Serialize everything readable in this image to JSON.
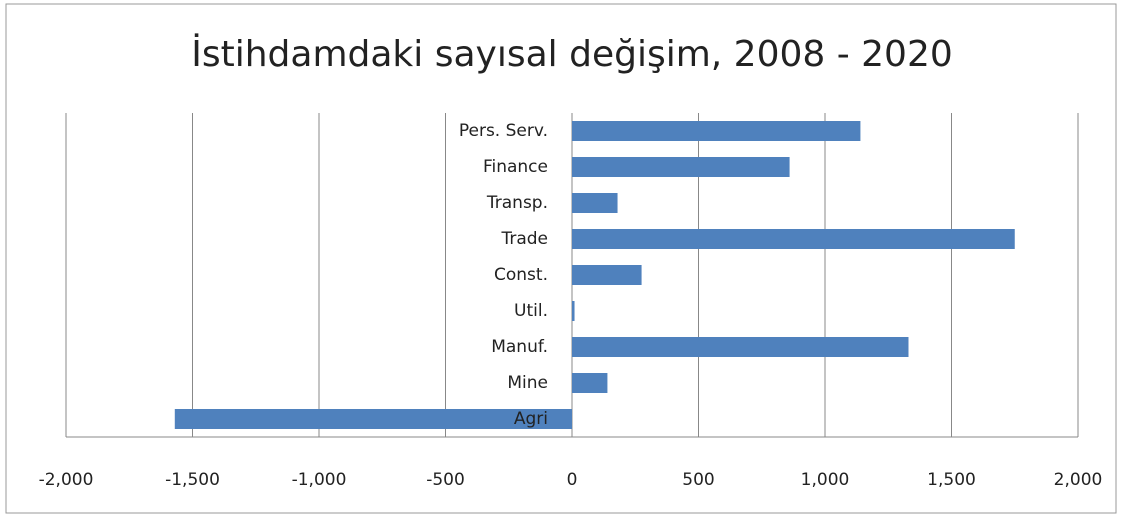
{
  "chart_data": {
    "type": "barh",
    "title": "İstihdamdaki sayısal değişim, 2008 - 2020",
    "categories": [
      "Pers. Serv.",
      "Finance",
      "Transp.",
      "Trade",
      "Const.",
      "Util.",
      "Manuf.",
      "Mine",
      "Agri"
    ],
    "values": [
      1140,
      860,
      180,
      1750,
      275,
      10,
      1330,
      140,
      -1570
    ],
    "color": "#4f81bd",
    "xlim": [
      -2000,
      2000
    ],
    "xticks": [
      {
        "value": -2000,
        "label": "-2,000"
      },
      {
        "value": -1500,
        "label": "-1,500"
      },
      {
        "value": -1000,
        "label": "-1,000"
      },
      -500,
      0,
      500,
      {
        "value": 1000,
        "label": "1,000"
      },
      {
        "value": 1500,
        "label": "1,500"
      },
      {
        "value": 2000,
        "label": "2,000"
      }
    ],
    "grid": true
  }
}
